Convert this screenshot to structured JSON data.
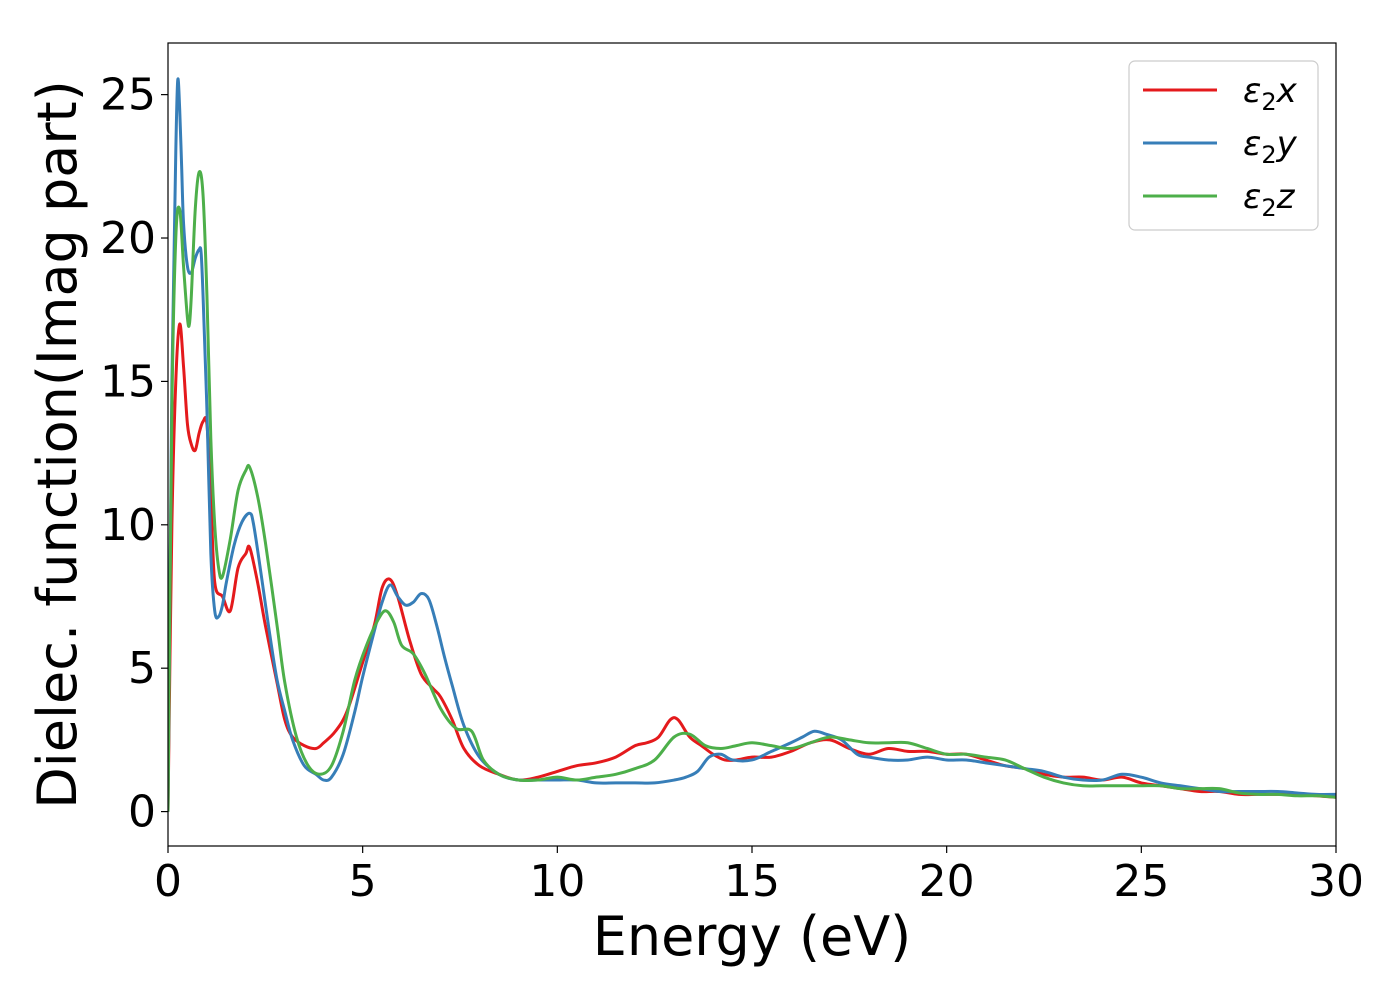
{
  "chart_data": {
    "type": "line",
    "title": "",
    "xlabel": "Energy (eV)",
    "ylabel": "Dielec. function(Imag part)",
    "xlim": [
      0,
      30
    ],
    "ylim": [
      -1.2,
      26.8
    ],
    "xticks": [
      0,
      5,
      10,
      15,
      20,
      25,
      30
    ],
    "yticks": [
      0,
      5,
      10,
      15,
      20,
      25
    ],
    "grid": false,
    "legend_position": "top-right",
    "series": [
      {
        "name": "ε2x",
        "legend_base": "ε",
        "legend_sub": "2",
        "legend_suffix": "x",
        "color": "#e41a1c",
        "x": [
          0,
          0.1,
          0.2,
          0.3,
          0.4,
          0.5,
          0.6,
          0.7,
          0.8,
          0.9,
          1.0,
          1.1,
          1.2,
          1.4,
          1.6,
          1.8,
          2.0,
          2.1,
          2.3,
          2.5,
          2.8,
          3.0,
          3.2,
          3.5,
          3.8,
          4.0,
          4.3,
          4.6,
          5.0,
          5.3,
          5.5,
          5.7,
          5.9,
          6.2,
          6.5,
          6.8,
          7.0,
          7.3,
          7.6,
          8.0,
          8.5,
          9.0,
          9.5,
          10.0,
          10.5,
          11.0,
          11.5,
          12.0,
          12.3,
          12.6,
          12.9,
          13.1,
          13.4,
          13.7,
          14.0,
          14.3,
          14.6,
          15.0,
          15.5,
          16.0,
          16.5,
          17.0,
          17.5,
          18.0,
          18.5,
          19.0,
          19.5,
          20.0,
          20.5,
          21.0,
          21.5,
          22.0,
          22.5,
          23.0,
          23.5,
          24.0,
          24.5,
          25.0,
          25.5,
          26.0,
          26.5,
          27.0,
          27.5,
          28.0,
          28.5,
          29.0,
          29.5,
          30.0
        ],
        "y": [
          0,
          10,
          15,
          17,
          15.5,
          13.5,
          12.8,
          12.6,
          13.2,
          13.6,
          13.5,
          11,
          8,
          7.5,
          7.0,
          8.5,
          9.0,
          9.2,
          8.0,
          6.5,
          4.5,
          3.2,
          2.6,
          2.3,
          2.2,
          2.4,
          2.8,
          3.5,
          5.2,
          6.5,
          7.8,
          8.1,
          7.5,
          6.0,
          4.8,
          4.3,
          4.0,
          3.2,
          2.2,
          1.6,
          1.3,
          1.1,
          1.2,
          1.4,
          1.6,
          1.7,
          1.9,
          2.3,
          2.4,
          2.6,
          3.2,
          3.2,
          2.6,
          2.3,
          2.0,
          1.8,
          1.8,
          1.9,
          1.9,
          2.1,
          2.4,
          2.5,
          2.2,
          2.0,
          2.2,
          2.1,
          2.1,
          2.0,
          2.0,
          1.8,
          1.6,
          1.5,
          1.3,
          1.2,
          1.2,
          1.1,
          1.2,
          1.0,
          0.9,
          0.8,
          0.7,
          0.7,
          0.6,
          0.6,
          0.6,
          0.6,
          0.55,
          0.5
        ]
      },
      {
        "name": "ε2y",
        "legend_base": "ε",
        "legend_sub": "2",
        "legend_suffix": "y",
        "color": "#377eb8",
        "x": [
          0,
          0.1,
          0.2,
          0.25,
          0.3,
          0.35,
          0.4,
          0.5,
          0.6,
          0.7,
          0.8,
          0.85,
          0.9,
          1.0,
          1.1,
          1.2,
          1.3,
          1.4,
          1.5,
          1.7,
          1.9,
          2.1,
          2.2,
          2.4,
          2.6,
          2.8,
          3.0,
          3.2,
          3.5,
          3.8,
          4.0,
          4.2,
          4.5,
          4.8,
          5.0,
          5.3,
          5.5,
          5.7,
          5.9,
          6.1,
          6.3,
          6.5,
          6.7,
          6.9,
          7.1,
          7.3,
          7.6,
          8.0,
          8.5,
          9.0,
          9.5,
          10.0,
          10.5,
          11.0,
          11.5,
          12.0,
          12.5,
          13.0,
          13.3,
          13.6,
          13.9,
          14.2,
          14.5,
          15.0,
          15.5,
          16.0,
          16.3,
          16.6,
          16.9,
          17.3,
          17.7,
          18.0,
          18.5,
          19.0,
          19.5,
          20.0,
          20.5,
          21.0,
          21.5,
          22.0,
          22.5,
          23.0,
          23.5,
          24.0,
          24.5,
          25.0,
          25.5,
          26.0,
          26.5,
          27.0,
          27.5,
          28.0,
          28.5,
          29.0,
          29.5,
          30.0
        ],
        "y": [
          0,
          15,
          23,
          25.5,
          24.5,
          22.5,
          20.5,
          19,
          18.8,
          19.3,
          19.6,
          19.5,
          18,
          14,
          9,
          7,
          6.8,
          7.2,
          8,
          9.3,
          10.1,
          10.4,
          10.0,
          8.2,
          6.3,
          4.6,
          3.5,
          2.5,
          1.6,
          1.3,
          1.1,
          1.2,
          2.0,
          3.5,
          4.7,
          6.3,
          7.3,
          7.9,
          7.5,
          7.2,
          7.3,
          7.6,
          7.4,
          6.5,
          5.4,
          4.4,
          3.0,
          1.9,
          1.3,
          1.1,
          1.1,
          1.1,
          1.1,
          1.0,
          1.0,
          1.0,
          1.0,
          1.1,
          1.2,
          1.4,
          1.9,
          2.0,
          1.8,
          1.8,
          2.1,
          2.4,
          2.6,
          2.8,
          2.7,
          2.5,
          2.0,
          1.9,
          1.8,
          1.8,
          1.9,
          1.8,
          1.8,
          1.7,
          1.6,
          1.5,
          1.4,
          1.2,
          1.1,
          1.1,
          1.3,
          1.2,
          1.0,
          0.9,
          0.8,
          0.7,
          0.7,
          0.7,
          0.7,
          0.65,
          0.6,
          0.6
        ]
      },
      {
        "name": "ε2z",
        "legend_base": "ε",
        "legend_sub": "2",
        "legend_suffix": "z",
        "color": "#4daf4a",
        "x": [
          0,
          0.1,
          0.2,
          0.3,
          0.4,
          0.5,
          0.55,
          0.6,
          0.7,
          0.8,
          0.9,
          1.0,
          1.1,
          1.2,
          1.3,
          1.4,
          1.6,
          1.8,
          2.0,
          2.1,
          2.3,
          2.5,
          2.8,
          3.0,
          3.3,
          3.6,
          3.9,
          4.2,
          4.5,
          4.8,
          5.1,
          5.4,
          5.6,
          5.8,
          6.0,
          6.3,
          6.6,
          7.0,
          7.4,
          7.8,
          8.1,
          8.5,
          9.0,
          9.5,
          10.0,
          10.5,
          11.0,
          11.5,
          12.0,
          12.5,
          13.0,
          13.4,
          13.8,
          14.2,
          14.6,
          15.0,
          15.5,
          16.0,
          16.5,
          17.0,
          17.5,
          18.0,
          18.5,
          19.0,
          19.5,
          20.0,
          20.5,
          21.0,
          21.5,
          22.0,
          22.5,
          23.0,
          23.5,
          24.0,
          24.5,
          25.0,
          25.5,
          26.0,
          26.5,
          27.0,
          27.5,
          28.0,
          28.5,
          29.0,
          29.5,
          30.0
        ],
        "y": [
          0,
          14,
          20,
          21,
          19,
          17.2,
          17,
          18,
          21,
          22.3,
          21.5,
          18,
          13,
          10,
          8.5,
          8.2,
          9.5,
          11.2,
          11.9,
          12.0,
          11.0,
          9.4,
          6.5,
          4.5,
          2.6,
          1.6,
          1.3,
          1.6,
          2.8,
          4.6,
          5.8,
          6.7,
          7.0,
          6.6,
          5.8,
          5.5,
          4.8,
          3.6,
          2.9,
          2.8,
          1.8,
          1.3,
          1.1,
          1.1,
          1.2,
          1.1,
          1.2,
          1.3,
          1.5,
          1.8,
          2.6,
          2.7,
          2.3,
          2.2,
          2.3,
          2.4,
          2.3,
          2.2,
          2.4,
          2.6,
          2.5,
          2.4,
          2.4,
          2.4,
          2.2,
          2.0,
          2.0,
          1.9,
          1.8,
          1.5,
          1.2,
          1.0,
          0.9,
          0.9,
          0.9,
          0.9,
          0.9,
          0.8,
          0.8,
          0.8,
          0.65,
          0.6,
          0.6,
          0.55,
          0.55,
          0.5
        ]
      }
    ]
  }
}
